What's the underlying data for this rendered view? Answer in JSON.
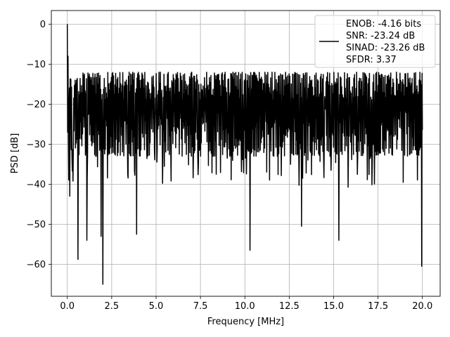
{
  "chart_data": {
    "type": "line",
    "xlabel": "Frequency [MHz]",
    "ylabel": "PSD [dB]",
    "xlim": [
      -0.9,
      21.0
    ],
    "ylim": [
      -68,
      3.4
    ],
    "grid": true,
    "x_ticks": [
      0.0,
      2.5,
      5.0,
      7.5,
      10.0,
      12.5,
      15.0,
      17.5,
      20.0
    ],
    "x_tick_labels": [
      "0.0",
      "2.5",
      "5.0",
      "7.5",
      "10.0",
      "12.5",
      "15.0",
      "17.5",
      "20.0"
    ],
    "y_ticks": [
      0,
      -10,
      -20,
      -30,
      -40,
      -50,
      -60
    ],
    "y_tick_labels": [
      "0",
      "−10",
      "−20",
      "−30",
      "−40",
      "−50",
      "−60"
    ],
    "legend_position": "top-right",
    "legend_entries": [
      "ENOB: -4.16 bits",
      "SNR: -23.24 dB",
      "SINAD: -23.26 dB",
      "SFDR: 3.37"
    ],
    "series": [
      {
        "color": "#000000",
        "x_range": [
          0.0,
          20.0
        ],
        "n_points": 1000,
        "peak": {
          "x": 0.0,
          "y": 0.0
        },
        "noise_band_upper": -12.0,
        "noise_band_lower": -33.0,
        "notable_dips": [
          {
            "x": 0.15,
            "y": -43.0
          },
          {
            "x": 0.6,
            "y": -58.8
          },
          {
            "x": 1.1,
            "y": -54.0
          },
          {
            "x": 1.9,
            "y": -53.0
          },
          {
            "x": 2.0,
            "y": -65.0
          },
          {
            "x": 3.9,
            "y": -52.5
          },
          {
            "x": 10.3,
            "y": -56.5
          },
          {
            "x": 13.2,
            "y": -50.5
          },
          {
            "x": 15.3,
            "y": -54.0
          },
          {
            "x": 19.95,
            "y": -60.5
          }
        ]
      }
    ]
  }
}
